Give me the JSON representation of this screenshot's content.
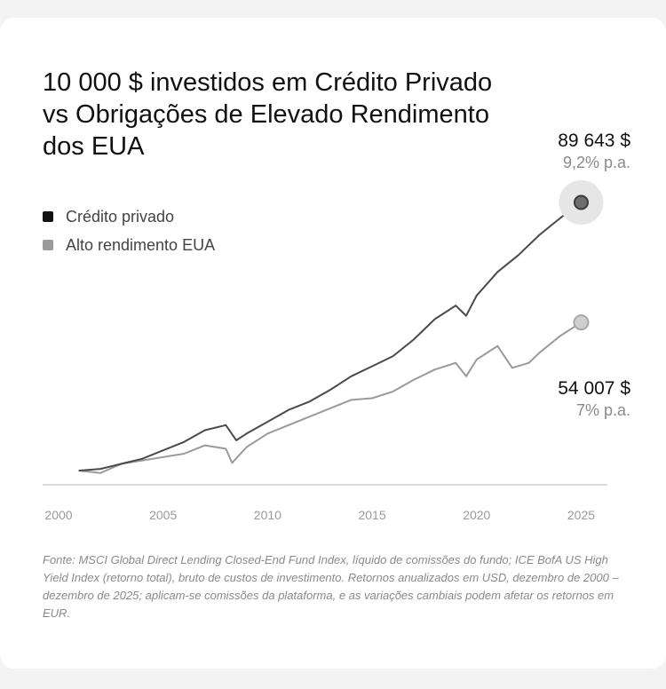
{
  "chart_data": {
    "type": "line",
    "title": "10 000 $ investidos em Crédito Privado vs Obrigações de Elevado Rendimento dos EUA",
    "xlabel": "",
    "ylabel": "",
    "grid": false,
    "legend_position": "top-left",
    "xlim": [
      2000,
      2026
    ],
    "ylim": [
      0,
      100000
    ],
    "x_ticks": [
      "2000",
      "2005",
      "2010",
      "2015",
      "2020",
      "2025"
    ],
    "series": [
      {
        "name": "Crédito privado",
        "color": "#4a4a4a",
        "end_value": "89 643 $",
        "end_rate": "9,2% p.a.",
        "points": [
          [
            2001,
            10000
          ],
          [
            2002,
            10500
          ],
          [
            2003,
            12000
          ],
          [
            2004,
            13500
          ],
          [
            2005,
            16000
          ],
          [
            2006,
            18500
          ],
          [
            2007,
            22000
          ],
          [
            2008,
            23500
          ],
          [
            2008.5,
            19000
          ],
          [
            2009,
            21000
          ],
          [
            2010,
            24500
          ],
          [
            2011,
            28000
          ],
          [
            2012,
            30500
          ],
          [
            2013,
            34000
          ],
          [
            2014,
            38000
          ],
          [
            2015,
            41000
          ],
          [
            2016,
            44000
          ],
          [
            2017,
            49000
          ],
          [
            2018,
            55000
          ],
          [
            2019,
            59000
          ],
          [
            2019.5,
            56000
          ],
          [
            2020,
            62000
          ],
          [
            2021,
            69000
          ],
          [
            2022,
            74000
          ],
          [
            2023,
            80000
          ],
          [
            2024,
            85000
          ],
          [
            2025,
            89643
          ]
        ]
      },
      {
        "name": "Alto rendimento EUA",
        "color": "#9a9a9a",
        "end_value": "54 007 $",
        "end_rate": "7% p.a.",
        "points": [
          [
            2001,
            10000
          ],
          [
            2002,
            9300
          ],
          [
            2003,
            12000
          ],
          [
            2004,
            13000
          ],
          [
            2005,
            14000
          ],
          [
            2006,
            15000
          ],
          [
            2007,
            17500
          ],
          [
            2008,
            16500
          ],
          [
            2008.3,
            12300
          ],
          [
            2009,
            17000
          ],
          [
            2010,
            21000
          ],
          [
            2011,
            23500
          ],
          [
            2012,
            26000
          ],
          [
            2013,
            28500
          ],
          [
            2014,
            31000
          ],
          [
            2015,
            31500
          ],
          [
            2016,
            33500
          ],
          [
            2017,
            37000
          ],
          [
            2018,
            40000
          ],
          [
            2019,
            42000
          ],
          [
            2019.5,
            38000
          ],
          [
            2020,
            43000
          ],
          [
            2021,
            47000
          ],
          [
            2021.7,
            40500
          ],
          [
            2022.5,
            42000
          ],
          [
            2023,
            45000
          ],
          [
            2024,
            50000
          ],
          [
            2025,
            54007
          ]
        ]
      }
    ]
  },
  "source": "Fonte: MSCI Global Direct Lending Closed-End Fund Index, líquido de comissões do fundo; ICE BofA US High Yield Index (retorno total), bruto de custos de investimento. Retornos anualizados em USD, dezembro de 2000 – dezembro de 2025; aplicam-se comissões da plataforma, e as variações cambiais podem afetar os retornos em EUR."
}
